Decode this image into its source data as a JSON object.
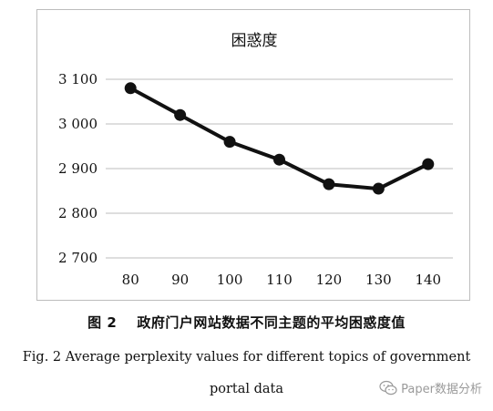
{
  "chart_data": {
    "type": "line",
    "title": "困惑度",
    "categories": [
      "80",
      "90",
      "100",
      "110",
      "120",
      "130",
      "140"
    ],
    "values": [
      3080,
      3020,
      2960,
      2920,
      2865,
      2855,
      2910
    ],
    "y_ticks": [
      2700,
      2800,
      2900,
      3000,
      3100
    ],
    "y_tick_labels": [
      "2 700",
      "2 800",
      "2 900",
      "3 000",
      "3 100"
    ],
    "ylim": [
      2700,
      3100
    ],
    "grid": true,
    "line_color": "#111111",
    "grid_color": "#bdbdbd"
  },
  "caption": {
    "label": "图 2",
    "text_cn": "政府门户网站数据不同主题的平均困惑度值",
    "text_en_line1": "Fig. 2 Average perplexity values for different topics of government",
    "text_en_line2": "portal data"
  },
  "watermark": {
    "text": "Paper数据分析",
    "icon": "wechat-icon"
  }
}
